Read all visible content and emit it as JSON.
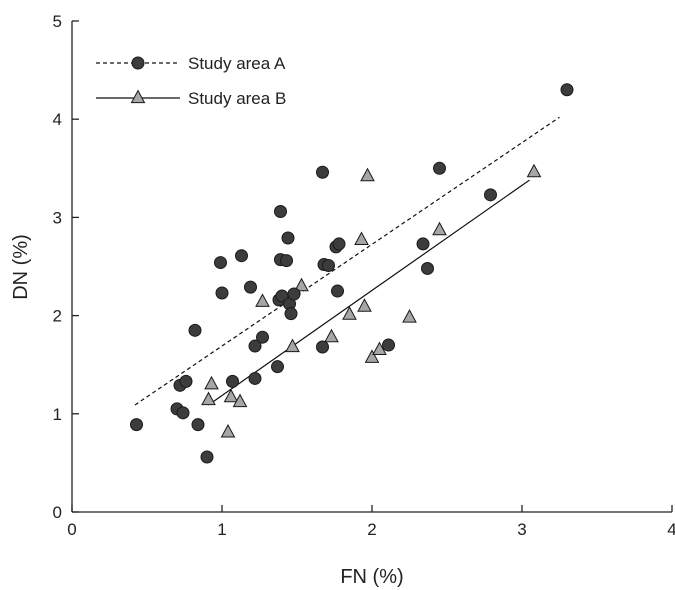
{
  "chart_data": {
    "type": "scatter",
    "title": "",
    "xlabel": "FN (%)",
    "ylabel": "DN (%)",
    "xlim": [
      0,
      4
    ],
    "ylim": [
      0,
      5
    ],
    "xticks": [
      "0",
      "1",
      "2",
      "3",
      "4"
    ],
    "yticks": [
      "0",
      "1",
      "2",
      "3",
      "4",
      "5"
    ],
    "grid": false,
    "legend_position": "top-left",
    "series": [
      {
        "name": "Study area A",
        "marker": "circle",
        "color": "#3c3c3c",
        "line_style": "dashed",
        "trend": [
          [
            0.42,
            1.09
          ],
          [
            3.25,
            4.02
          ]
        ],
        "points": [
          [
            0.43,
            0.89
          ],
          [
            0.7,
            1.05
          ],
          [
            0.72,
            1.29
          ],
          [
            0.74,
            1.01
          ],
          [
            0.76,
            1.33
          ],
          [
            0.82,
            1.85
          ],
          [
            0.84,
            0.89
          ],
          [
            0.9,
            0.56
          ],
          [
            0.99,
            2.54
          ],
          [
            1.0,
            2.23
          ],
          [
            1.07,
            1.33
          ],
          [
            1.13,
            2.61
          ],
          [
            1.19,
            2.29
          ],
          [
            1.22,
            1.69
          ],
          [
            1.22,
            1.36
          ],
          [
            1.27,
            1.78
          ],
          [
            1.37,
            1.48
          ],
          [
            1.38,
            2.16
          ],
          [
            1.39,
            3.06
          ],
          [
            1.39,
            2.57
          ],
          [
            1.4,
            2.2
          ],
          [
            1.43,
            2.56
          ],
          [
            1.44,
            2.79
          ],
          [
            1.45,
            2.12
          ],
          [
            1.46,
            2.02
          ],
          [
            1.48,
            2.22
          ],
          [
            1.67,
            3.46
          ],
          [
            1.67,
            1.68
          ],
          [
            1.68,
            2.52
          ],
          [
            1.71,
            2.51
          ],
          [
            1.76,
            2.7
          ],
          [
            1.77,
            2.25
          ],
          [
            1.78,
            2.73
          ],
          [
            2.11,
            1.7
          ],
          [
            2.34,
            2.73
          ],
          [
            2.37,
            2.48
          ],
          [
            2.45,
            3.5
          ],
          [
            2.79,
            3.23
          ],
          [
            3.3,
            4.3
          ]
        ]
      },
      {
        "name": "Study area B",
        "marker": "triangle",
        "color": "#a6a6a6",
        "line_style": "solid",
        "trend": [
          [
            0.91,
            1.09
          ],
          [
            3.05,
            3.38
          ]
        ],
        "points": [
          [
            0.91,
            1.14
          ],
          [
            0.93,
            1.3
          ],
          [
            1.04,
            0.81
          ],
          [
            1.06,
            1.17
          ],
          [
            1.12,
            1.12
          ],
          [
            1.27,
            2.14
          ],
          [
            1.47,
            1.68
          ],
          [
            1.53,
            2.3
          ],
          [
            1.73,
            1.78
          ],
          [
            1.85,
            2.01
          ],
          [
            1.93,
            2.77
          ],
          [
            1.95,
            2.09
          ],
          [
            1.97,
            3.42
          ],
          [
            2.0,
            1.57
          ],
          [
            2.05,
            1.65
          ],
          [
            2.25,
            1.98
          ],
          [
            2.45,
            2.87
          ],
          [
            3.08,
            3.46
          ]
        ]
      }
    ]
  }
}
